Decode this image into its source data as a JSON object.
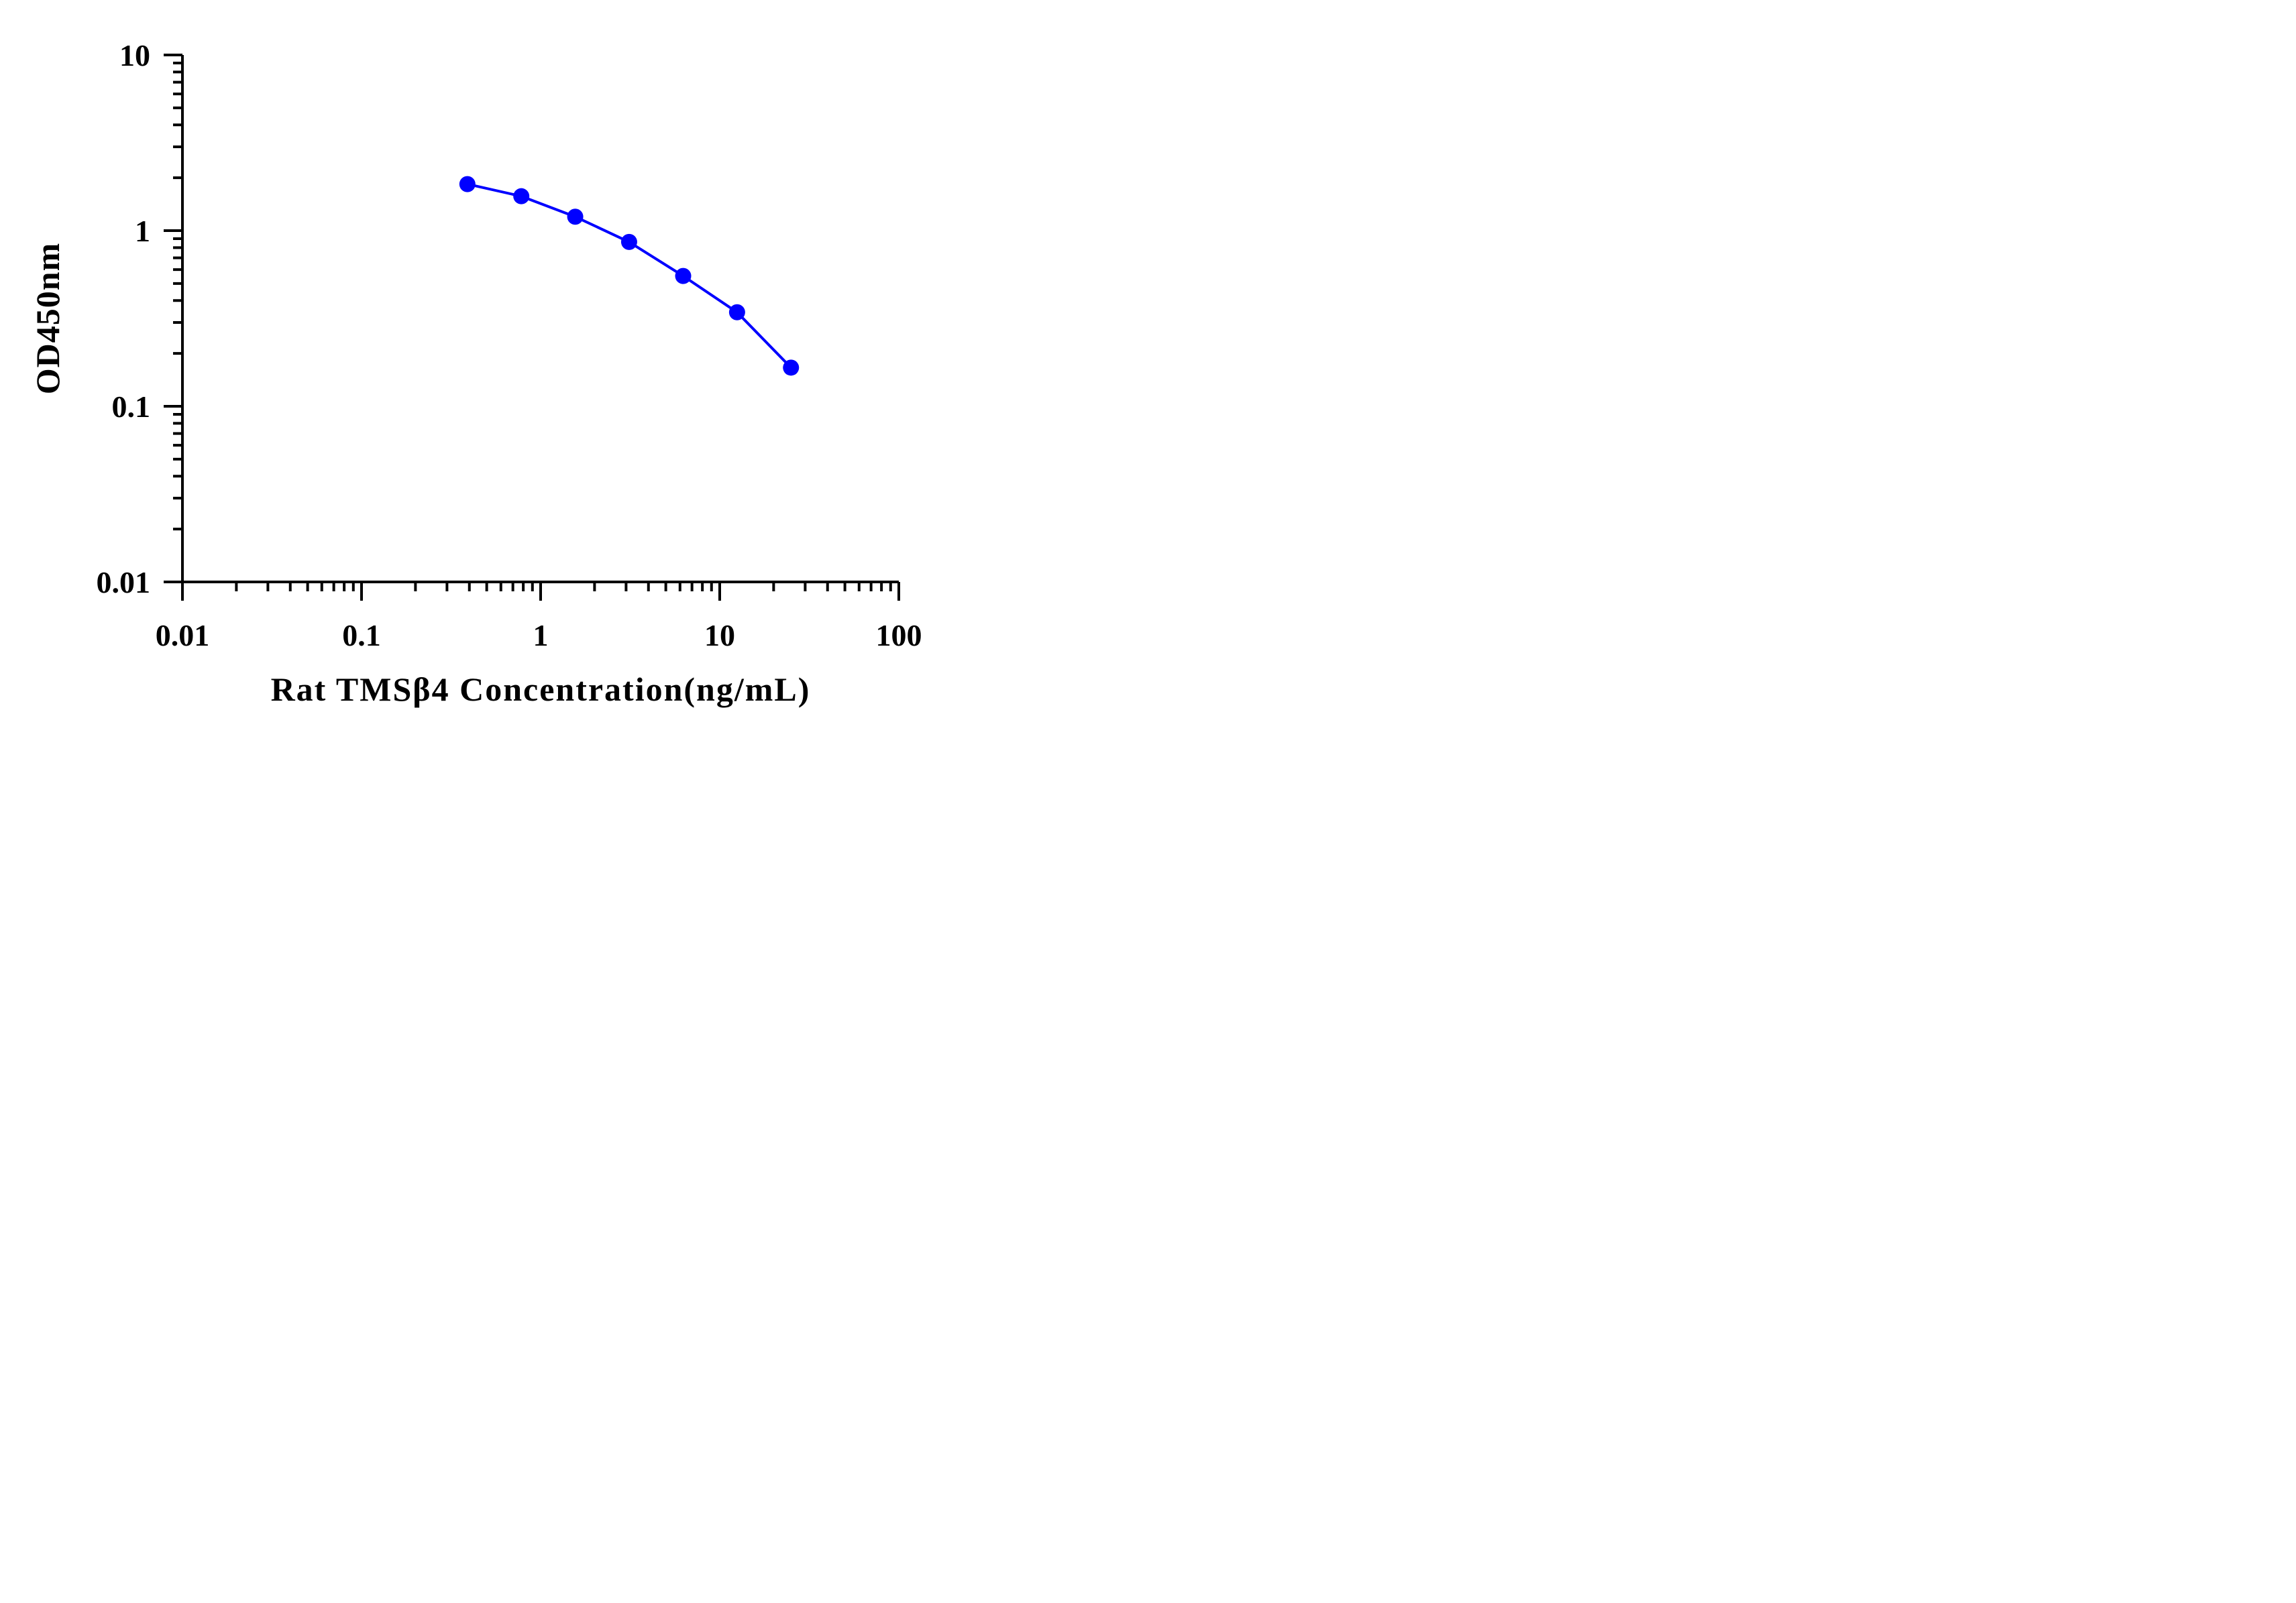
{
  "chart_data": {
    "type": "line",
    "xlabel": "Rat TMSβ4 Concentration(ng/mL)",
    "ylabel": "OD450nm",
    "x_scale": "log",
    "y_scale": "log",
    "xlim": [
      0.01,
      100
    ],
    "ylim": [
      0.01,
      10
    ],
    "x_ticks": [
      "0.01",
      "0.1",
      "1",
      "10",
      "100"
    ],
    "y_ticks": [
      "0.01",
      "0.1",
      "1",
      "10"
    ],
    "grid": false,
    "legend": "none",
    "series": [
      {
        "color": "#0000ff",
        "x": [
          0.39,
          0.78,
          1.56,
          3.12,
          6.25,
          12.5,
          25
        ],
        "y": [
          1.84,
          1.57,
          1.2,
          0.862,
          0.552,
          0.343,
          0.166
        ]
      }
    ]
  },
  "colors": {
    "axis": "#000000",
    "series": "#0000ff"
  }
}
